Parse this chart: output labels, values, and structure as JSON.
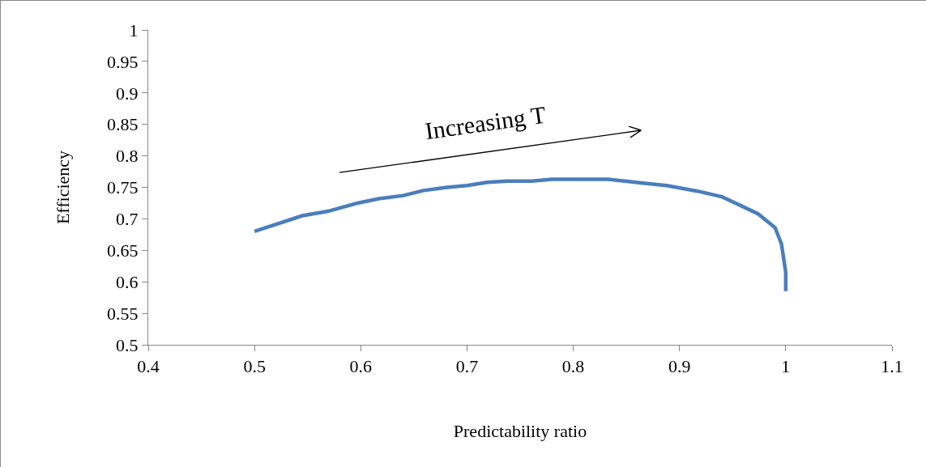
{
  "chart_data": {
    "type": "line",
    "xlabel": "Predictability ratio",
    "ylabel": "Efficiency",
    "annotations": [
      "Increasing T"
    ],
    "x": [
      0.5,
      0.545,
      0.569,
      0.597,
      0.617,
      0.64,
      0.659,
      0.681,
      0.7,
      0.719,
      0.738,
      0.761,
      0.78,
      0.833,
      0.864,
      0.888,
      0.917,
      0.94,
      0.959,
      0.974,
      0.99,
      0.996,
      1.0,
      1.0
    ],
    "series": [
      {
        "color": "#4a7ebb",
        "values": [
          0.68,
          0.705,
          0.712,
          0.725,
          0.732,
          0.737,
          0.745,
          0.75,
          0.753,
          0.758,
          0.76,
          0.76,
          0.763,
          0.763,
          0.757,
          0.753,
          0.744,
          0.735,
          0.72,
          0.708,
          0.686,
          0.66,
          0.615,
          0.585
        ]
      }
    ],
    "xlim": [
      0.4,
      1.1
    ],
    "xticks": [
      0.4,
      0.5,
      0.6,
      0.7,
      0.8,
      0.9,
      1,
      1.1
    ],
    "ylim": [
      0.5,
      1
    ],
    "yticks": [
      0.5,
      0.55,
      0.6,
      0.65,
      0.7,
      0.75,
      0.8,
      0.85,
      0.9,
      0.95,
      1
    ],
    "grid": false,
    "marker": "none",
    "line_style": "solid"
  }
}
